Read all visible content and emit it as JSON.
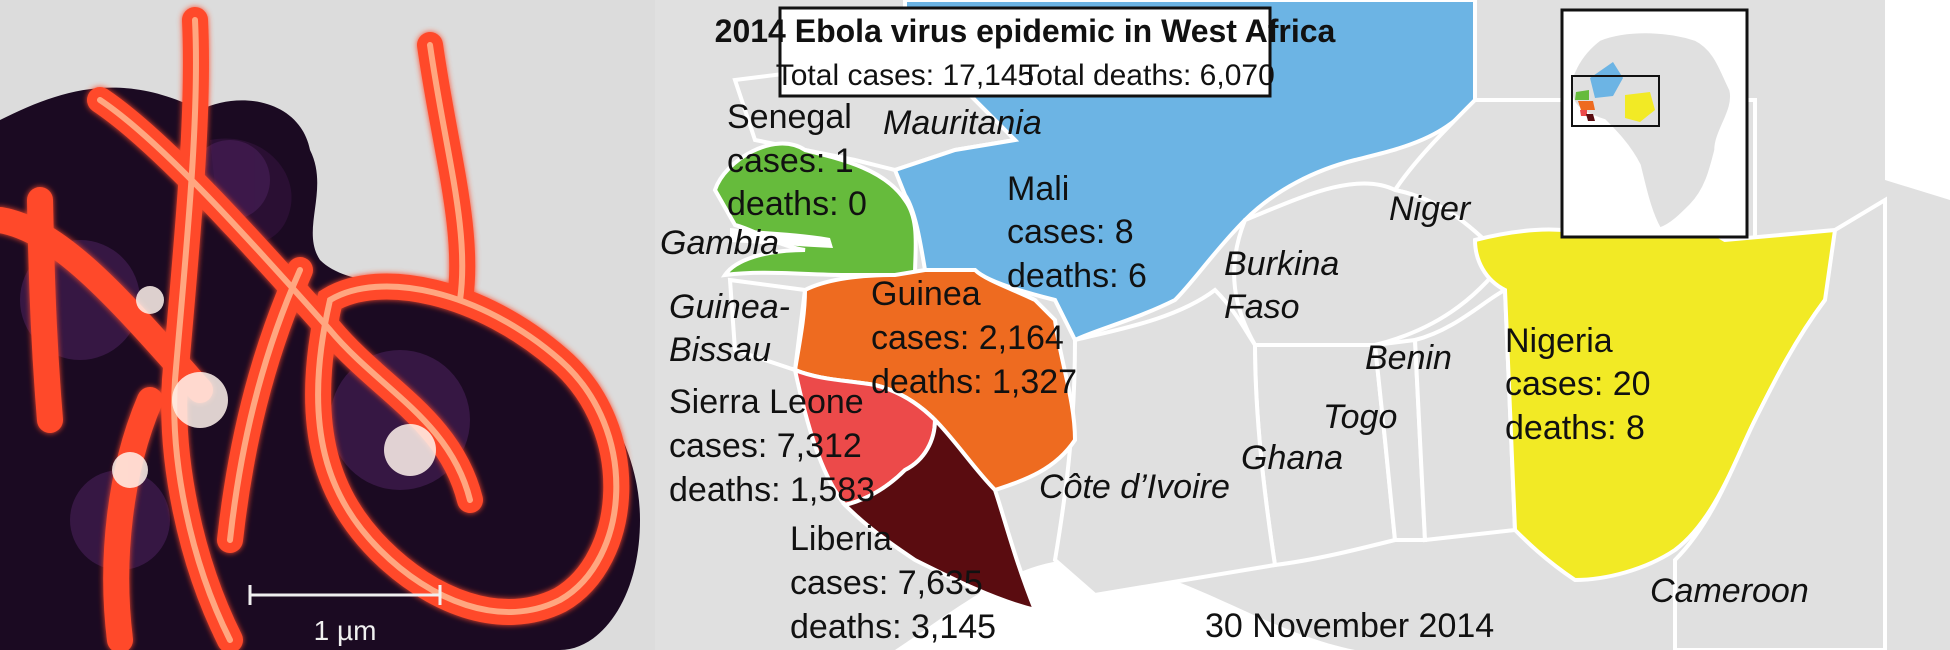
{
  "micrograph": {
    "scale_bar_label": "1 µm"
  },
  "map": {
    "title": "2014 Ebola virus epidemic in West Africa",
    "totals": {
      "cases_label": "Total cases: 17,145",
      "deaths_label": "Total deaths: 6,070"
    },
    "date": "30 November 2014",
    "affected_countries": [
      {
        "name": "Senegal",
        "cases": "cases: 1",
        "deaths": "deaths: 0",
        "color": "#66bb3c"
      },
      {
        "name": "Mali",
        "cases": "cases: 8",
        "deaths": "deaths: 6",
        "color": "#6cb4e4"
      },
      {
        "name": "Guinea",
        "cases": "cases: 2,164",
        "deaths": "deaths: 1,327",
        "color": "#ee6b20"
      },
      {
        "name": "Sierra Leone",
        "cases": "cases: 7,312",
        "deaths": "deaths: 1,583",
        "color": "#ec4a4a"
      },
      {
        "name": "Liberia",
        "cases": "cases: 7,635",
        "deaths": "deaths: 3,145",
        "color": "#5a0c10"
      },
      {
        "name": "Nigeria",
        "cases": "cases: 20",
        "deaths": "deaths: 8",
        "color": "#f2ea25"
      }
    ],
    "other_countries": {
      "mauritania": "Mauritania",
      "gambia": "Gambia",
      "guinea_bissau_1": "Guinea-",
      "guinea_bissau_2": "Bissau",
      "niger": "Niger",
      "burkina_1": "Burkina",
      "burkina_2": "Faso",
      "benin": "Benin",
      "togo": "Togo",
      "ghana": "Ghana",
      "cote_divoire": "Côte d’Ivoire",
      "cameroon": "Cameroon"
    },
    "colors": {
      "land": "#e0e0e0",
      "sea": "#ffffff",
      "border": "#ffffff"
    }
  }
}
